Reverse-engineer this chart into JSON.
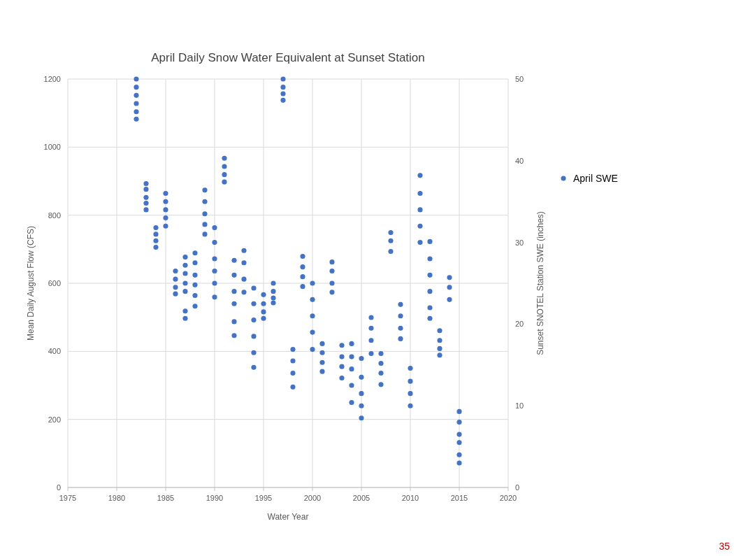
{
  "chart_data": {
    "type": "scatter",
    "title": "April Daily Snow Water Equivalent at Sunset Station",
    "xlabel": "Water Year",
    "ylabel": "Mean Daily August Flow (CFS)",
    "y2label": "Sunset SNOTEL Station SWE (inches)",
    "xlim": [
      1975,
      2020
    ],
    "xticks": [
      1975,
      1980,
      1985,
      1990,
      1995,
      2000,
      2005,
      2010,
      2015,
      2020
    ],
    "ylim": [
      0,
      1200
    ],
    "yticks": [
      0,
      200,
      400,
      600,
      800,
      1000,
      1200
    ],
    "y2lim": [
      0,
      50
    ],
    "y2ticks": [
      0,
      10,
      20,
      30,
      40,
      50
    ],
    "grid": true,
    "legend": "right",
    "marker": "circle",
    "annotations": [
      "35"
    ],
    "series": [
      {
        "name": "April SWE",
        "color": "#4472c4",
        "axis": "y2",
        "x": [
          1982,
          1982,
          1982,
          1982,
          1982,
          1982,
          1983,
          1983,
          1983,
          1983,
          1983,
          1984,
          1984,
          1984,
          1984,
          1985,
          1985,
          1985,
          1985,
          1985,
          1986,
          1986,
          1986,
          1986,
          1987,
          1987,
          1987,
          1987,
          1987,
          1987,
          1987,
          1988,
          1988,
          1988,
          1988,
          1988,
          1988,
          1989,
          1989,
          1989,
          1989,
          1989,
          1990,
          1990,
          1990,
          1990,
          1990,
          1990,
          1991,
          1991,
          1991,
          1991,
          1992,
          1992,
          1992,
          1992,
          1992,
          1992,
          1993,
          1993,
          1993,
          1993,
          1994,
          1994,
          1994,
          1994,
          1994,
          1994,
          1995,
          1995,
          1995,
          1995,
          1996,
          1996,
          1996,
          1996,
          1997,
          1997,
          1997,
          1997,
          1998,
          1998,
          1998,
          1998,
          1999,
          1999,
          1999,
          1999,
          2000,
          2000,
          2000,
          2000,
          2000,
          2001,
          2001,
          2001,
          2001,
          2002,
          2002,
          2002,
          2002,
          2003,
          2003,
          2003,
          2003,
          2004,
          2004,
          2004,
          2004,
          2004,
          2005,
          2005,
          2005,
          2005,
          2005,
          2006,
          2006,
          2006,
          2006,
          2007,
          2007,
          2007,
          2007,
          2008,
          2008,
          2008,
          2009,
          2009,
          2009,
          2009,
          2010,
          2010,
          2010,
          2010,
          2011,
          2011,
          2011,
          2011,
          2011,
          2012,
          2012,
          2012,
          2012,
          2012,
          2012,
          2013,
          2013,
          2013,
          2013,
          2014,
          2014,
          2014,
          2015,
          2015,
          2015,
          2015,
          2015,
          2015
        ],
        "values": [
          50,
          49,
          48,
          47,
          46,
          45.1,
          37.2,
          36.5,
          35.5,
          34.8,
          34.0,
          31.8,
          31,
          30.2,
          29.4,
          36,
          35,
          34,
          33,
          32,
          26.5,
          25.5,
          24.5,
          23.7,
          28.2,
          27.2,
          26.2,
          25,
          24,
          21.6,
          20.7,
          28.7,
          27.5,
          26,
          24.8,
          23.5,
          22.2,
          36.4,
          35,
          33.5,
          32.2,
          31,
          31.8,
          30,
          28,
          26.5,
          25,
          23.3,
          40.3,
          39.3,
          38.3,
          37.4,
          27.8,
          26,
          24,
          22.5,
          20.3,
          18.6,
          29,
          27.5,
          25.5,
          23.9,
          24.4,
          22.5,
          20.5,
          18.5,
          16.5,
          14.7,
          23.6,
          22.5,
          21.5,
          20.7,
          25,
          24,
          23.2,
          22.6,
          50,
          49,
          48.2,
          47.4,
          16.9,
          15.5,
          14,
          12.3,
          28.3,
          27,
          25.8,
          24.6,
          25,
          23,
          21,
          19,
          16.9,
          17.6,
          16.5,
          15.3,
          14.2,
          27.6,
          26.5,
          25,
          23.9,
          17.4,
          16,
          14.8,
          13.4,
          17.6,
          16,
          14.5,
          12.5,
          10.4,
          15.8,
          13.5,
          11.5,
          10,
          8.5,
          20.8,
          19.5,
          18,
          16.4,
          16.4,
          15.2,
          14,
          12.6,
          31.2,
          30.2,
          28.9,
          22.4,
          21,
          19.5,
          18.2,
          14.6,
          13,
          11.5,
          10,
          38.2,
          36,
          34,
          32,
          30,
          30.1,
          28,
          26,
          24,
          22,
          20.7,
          19.2,
          18,
          17,
          16.2,
          25.7,
          24.5,
          23,
          9.3,
          8,
          6.5,
          5.5,
          4,
          3
        ]
      }
    ]
  }
}
